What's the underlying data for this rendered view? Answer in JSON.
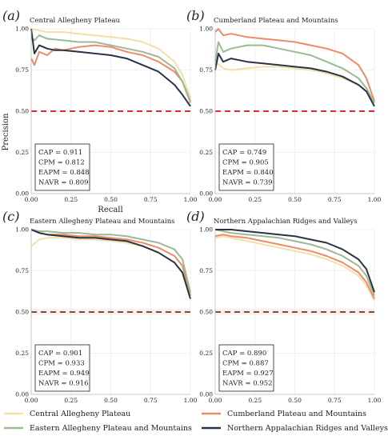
{
  "colors": {
    "CAP": "#f3e0a8",
    "CPM": "#ef8a66",
    "EAPM": "#9bb994",
    "NAVR": "#283344",
    "threshold_ab": "#e8252e",
    "threshold_cd": "#7a5525",
    "grid": "#ececec",
    "annotation_border": "#222222"
  },
  "figure": {
    "xlabel": "Recall",
    "ylabel": "Precision"
  },
  "legend": {
    "CAP": "Central Allegheny Plateau",
    "CPM": "Cumberland Plateau and Mountains",
    "EAPM": "Eastern Allegheny Plateau and Mountains",
    "NAVR": "Northern Appalachian Ridges and Valleys"
  },
  "chart_data": [
    {
      "type": "line",
      "letter": "(a)",
      "title": "Central Allegheny Plateau",
      "xlabel": "Recall",
      "ylabel": "Precision",
      "xlim": [
        0,
        1
      ],
      "ylim": [
        0,
        1
      ],
      "ticks": [
        "0.00",
        "0.25",
        "0.50",
        "0.75",
        "1.00"
      ],
      "threshold": 0.5,
      "grid": true,
      "annotations": [
        "CAP = 0.911",
        "CPM = 0.812",
        "EAPM = 0.848",
        "NAVR = 0.809"
      ],
      "series": [
        {
          "name": "CAP",
          "x": [
            0,
            0.05,
            0.1,
            0.2,
            0.3,
            0.4,
            0.5,
            0.6,
            0.7,
            0.8,
            0.9,
            0.95,
            1.0
          ],
          "y": [
            1.0,
            0.99,
            0.98,
            0.98,
            0.97,
            0.96,
            0.95,
            0.94,
            0.92,
            0.88,
            0.8,
            0.72,
            0.58
          ]
        },
        {
          "name": "CPM",
          "x": [
            0,
            0.02,
            0.05,
            0.1,
            0.15,
            0.2,
            0.3,
            0.4,
            0.5,
            0.6,
            0.7,
            0.8,
            0.9,
            0.95,
            1.0
          ],
          "y": [
            0.82,
            0.78,
            0.86,
            0.84,
            0.88,
            0.87,
            0.89,
            0.9,
            0.89,
            0.86,
            0.84,
            0.8,
            0.74,
            0.68,
            0.56
          ]
        },
        {
          "name": "EAPM",
          "x": [
            0,
            0.02,
            0.05,
            0.1,
            0.2,
            0.3,
            0.4,
            0.5,
            0.6,
            0.7,
            0.8,
            0.9,
            0.95,
            1.0
          ],
          "y": [
            0.95,
            0.93,
            0.96,
            0.94,
            0.93,
            0.92,
            0.92,
            0.9,
            0.88,
            0.86,
            0.83,
            0.76,
            0.68,
            0.55
          ]
        },
        {
          "name": "NAVR",
          "x": [
            0,
            0.02,
            0.05,
            0.1,
            0.15,
            0.2,
            0.3,
            0.4,
            0.5,
            0.6,
            0.7,
            0.8,
            0.9,
            0.95,
            1.0
          ],
          "y": [
            1.0,
            0.85,
            0.9,
            0.88,
            0.87,
            0.87,
            0.86,
            0.85,
            0.84,
            0.82,
            0.78,
            0.74,
            0.66,
            0.6,
            0.53
          ]
        }
      ]
    },
    {
      "type": "line",
      "letter": "(b)",
      "title": "Cumberland Plateau and Mountains",
      "xlabel": "",
      "ylabel": "",
      "xlim": [
        0,
        1
      ],
      "ylim": [
        0,
        1
      ],
      "ticks": [
        "0.00",
        "0.25",
        "0.50",
        "0.75",
        "1.00"
      ],
      "threshold": 0.5,
      "grid": true,
      "annotations": [
        "CAP = 0.749",
        "CPM = 0.905",
        "EAPM = 0.840",
        "NAVR = 0.739"
      ],
      "series": [
        {
          "name": "CAP",
          "x": [
            0,
            0.05,
            0.1,
            0.2,
            0.3,
            0.4,
            0.5,
            0.6,
            0.7,
            0.8,
            0.9,
            0.95,
            1.0
          ],
          "y": [
            0.8,
            0.76,
            0.75,
            0.76,
            0.77,
            0.77,
            0.76,
            0.75,
            0.73,
            0.7,
            0.66,
            0.62,
            0.56
          ]
        },
        {
          "name": "CPM",
          "x": [
            0,
            0.02,
            0.05,
            0.1,
            0.2,
            0.3,
            0.4,
            0.5,
            0.6,
            0.7,
            0.8,
            0.9,
            0.95,
            1.0
          ],
          "y": [
            0.98,
            1.0,
            0.96,
            0.97,
            0.95,
            0.94,
            0.93,
            0.92,
            0.9,
            0.88,
            0.85,
            0.78,
            0.7,
            0.56
          ]
        },
        {
          "name": "EAPM",
          "x": [
            0,
            0.02,
            0.05,
            0.1,
            0.2,
            0.3,
            0.4,
            0.5,
            0.6,
            0.7,
            0.8,
            0.9,
            0.95,
            1.0
          ],
          "y": [
            0.8,
            0.92,
            0.86,
            0.88,
            0.9,
            0.9,
            0.88,
            0.86,
            0.84,
            0.8,
            0.76,
            0.7,
            0.64,
            0.55
          ]
        },
        {
          "name": "NAVR",
          "x": [
            0,
            0.02,
            0.05,
            0.1,
            0.2,
            0.3,
            0.4,
            0.5,
            0.6,
            0.7,
            0.8,
            0.9,
            0.95,
            1.0
          ],
          "y": [
            0.75,
            0.85,
            0.8,
            0.82,
            0.8,
            0.79,
            0.78,
            0.77,
            0.76,
            0.74,
            0.71,
            0.66,
            0.62,
            0.53
          ]
        }
      ]
    },
    {
      "type": "line",
      "letter": "(c)",
      "title": "Eastern Allegheny Plateau and Mountains",
      "xlabel": "",
      "ylabel": "",
      "xlim": [
        0,
        1
      ],
      "ylim": [
        0,
        1
      ],
      "ticks": [
        "0.00",
        "0.25",
        "0.50",
        "0.75",
        "1.00"
      ],
      "threshold": 0.5,
      "grid": true,
      "annotations": [
        "CAP = 0.901",
        "CPM = 0.933",
        "EAPM = 0.949",
        "NAVR = 0.916"
      ],
      "series": [
        {
          "name": "CAP",
          "x": [
            0,
            0.05,
            0.1,
            0.2,
            0.3,
            0.4,
            0.5,
            0.6,
            0.7,
            0.8,
            0.9,
            0.95,
            1.0
          ],
          "y": [
            0.9,
            0.94,
            0.95,
            0.95,
            0.94,
            0.94,
            0.93,
            0.92,
            0.9,
            0.86,
            0.8,
            0.74,
            0.6
          ]
        },
        {
          "name": "CPM",
          "x": [
            0,
            0.05,
            0.1,
            0.2,
            0.3,
            0.4,
            0.5,
            0.6,
            0.7,
            0.8,
            0.9,
            0.95,
            1.0
          ],
          "y": [
            1.0,
            0.98,
            0.97,
            0.97,
            0.96,
            0.96,
            0.95,
            0.94,
            0.92,
            0.89,
            0.84,
            0.78,
            0.6
          ]
        },
        {
          "name": "EAPM",
          "x": [
            0,
            0.05,
            0.1,
            0.2,
            0.3,
            0.4,
            0.5,
            0.6,
            0.7,
            0.8,
            0.9,
            0.95,
            1.0
          ],
          "y": [
            1.0,
            0.99,
            0.99,
            0.98,
            0.98,
            0.97,
            0.97,
            0.96,
            0.94,
            0.92,
            0.88,
            0.82,
            0.62
          ]
        },
        {
          "name": "NAVR",
          "x": [
            0,
            0.05,
            0.1,
            0.2,
            0.3,
            0.4,
            0.5,
            0.6,
            0.7,
            0.8,
            0.9,
            0.95,
            1.0
          ],
          "y": [
            1.0,
            0.98,
            0.97,
            0.96,
            0.95,
            0.95,
            0.94,
            0.93,
            0.9,
            0.86,
            0.8,
            0.74,
            0.58
          ]
        }
      ]
    },
    {
      "type": "line",
      "letter": "(d)",
      "title": "Northern Appalachian Ridges and Valleys",
      "xlabel": "",
      "ylabel": "",
      "xlim": [
        0,
        1
      ],
      "ylim": [
        0,
        1
      ],
      "ticks": [
        "0.00",
        "0.25",
        "0.50",
        "0.75",
        "1.00"
      ],
      "threshold": 0.5,
      "grid": true,
      "annotations": [
        "CAP = 0.890",
        "CPM = 0.887",
        "EAPM = 0.927",
        "NAVR = 0.952"
      ],
      "series": [
        {
          "name": "CAP",
          "x": [
            0,
            0.05,
            0.1,
            0.2,
            0.3,
            0.4,
            0.5,
            0.6,
            0.7,
            0.8,
            0.9,
            0.95,
            1.0
          ],
          "y": [
            0.95,
            0.96,
            0.95,
            0.93,
            0.91,
            0.89,
            0.87,
            0.85,
            0.82,
            0.78,
            0.72,
            0.66,
            0.57
          ]
        },
        {
          "name": "CPM",
          "x": [
            0,
            0.05,
            0.1,
            0.2,
            0.3,
            0.4,
            0.5,
            0.6,
            0.7,
            0.8,
            0.9,
            0.95,
            1.0
          ],
          "y": [
            0.96,
            0.97,
            0.96,
            0.95,
            0.93,
            0.91,
            0.89,
            0.87,
            0.84,
            0.8,
            0.74,
            0.68,
            0.58
          ]
        },
        {
          "name": "EAPM",
          "x": [
            0,
            0.05,
            0.1,
            0.2,
            0.3,
            0.4,
            0.5,
            0.6,
            0.7,
            0.8,
            0.9,
            0.95,
            1.0
          ],
          "y": [
            1.0,
            0.99,
            0.98,
            0.97,
            0.96,
            0.95,
            0.93,
            0.91,
            0.88,
            0.84,
            0.78,
            0.72,
            0.6
          ]
        },
        {
          "name": "NAVR",
          "x": [
            0,
            0.05,
            0.1,
            0.2,
            0.3,
            0.4,
            0.5,
            0.6,
            0.7,
            0.8,
            0.9,
            0.95,
            1.0
          ],
          "y": [
            1.0,
            1.0,
            1.0,
            0.99,
            0.98,
            0.97,
            0.96,
            0.94,
            0.92,
            0.88,
            0.82,
            0.76,
            0.62
          ]
        }
      ]
    }
  ]
}
